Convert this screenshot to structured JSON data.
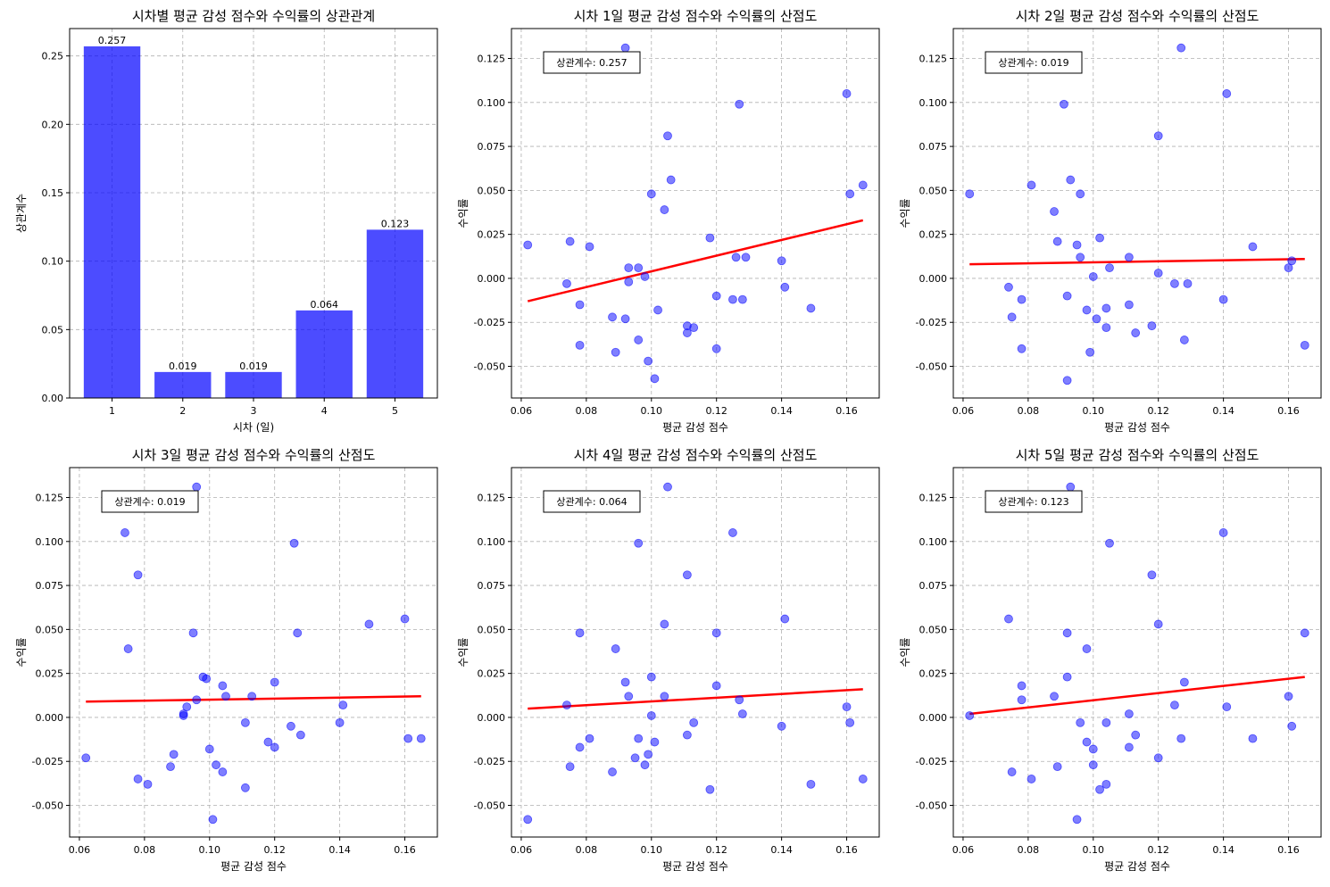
{
  "chart_data": [
    {
      "type": "bar",
      "title": "시차별 평균 감성 점수와 수익률의 상관관계",
      "xlabel": "시차 (일)",
      "ylabel": "상관계수",
      "categories": [
        "1",
        "2",
        "3",
        "4",
        "5"
      ],
      "values": [
        0.257,
        0.019,
        0.019,
        0.064,
        0.123
      ],
      "data_labels": [
        "0.257",
        "0.019",
        "0.019",
        "0.064",
        "0.123"
      ],
      "ylim": [
        0,
        0.27
      ],
      "yticks": [
        0.0,
        0.05,
        0.1,
        0.15,
        0.2,
        0.25
      ],
      "ytick_labels": [
        "0.00",
        "0.05",
        "0.10",
        "0.15",
        "0.20",
        "0.25"
      ],
      "grid": true,
      "bar_color": "#0000ff"
    },
    {
      "type": "scatter",
      "title": "시차 1일 평균 감성 점수와 수익률의 산점도",
      "xlabel": "평균 감성 점수",
      "ylabel": "수익률",
      "annotation": "상관계수: 0.257",
      "xlim": [
        0.057,
        0.17
      ],
      "ylim": [
        -0.068,
        0.142
      ],
      "xticks": [
        0.06,
        0.08,
        0.1,
        0.12,
        0.14,
        0.16
      ],
      "xtick_labels": [
        "0.06",
        "0.08",
        "0.10",
        "0.12",
        "0.14",
        "0.16"
      ],
      "yticks": [
        -0.05,
        -0.025,
        0.0,
        0.025,
        0.05,
        0.075,
        0.1,
        0.125
      ],
      "ytick_labels": [
        "-0.050",
        "-0.025",
        "0.000",
        "0.025",
        "0.050",
        "0.075",
        "0.100",
        "0.125"
      ],
      "grid": true,
      "point_color": "#0000ff",
      "line_color": "#ff0000",
      "trend": {
        "x": [
          0.062,
          0.165
        ],
        "y": [
          -0.013,
          0.033
        ]
      },
      "points": [
        [
          0.062,
          0.019
        ],
        [
          0.074,
          -0.003
        ],
        [
          0.075,
          0.021
        ],
        [
          0.078,
          -0.015
        ],
        [
          0.078,
          -0.038
        ],
        [
          0.081,
          0.018
        ],
        [
          0.088,
          -0.022
        ],
        [
          0.089,
          -0.042
        ],
        [
          0.092,
          0.131
        ],
        [
          0.092,
          -0.023
        ],
        [
          0.093,
          -0.002
        ],
        [
          0.093,
          0.006
        ],
        [
          0.096,
          0.006
        ],
        [
          0.096,
          -0.035
        ],
        [
          0.098,
          0.001
        ],
        [
          0.099,
          -0.047
        ],
        [
          0.1,
          0.048
        ],
        [
          0.101,
          -0.057
        ],
        [
          0.102,
          -0.018
        ],
        [
          0.104,
          0.039
        ],
        [
          0.105,
          0.081
        ],
        [
          0.106,
          0.056
        ],
        [
          0.111,
          -0.027
        ],
        [
          0.111,
          -0.031
        ],
        [
          0.113,
          -0.028
        ],
        [
          0.118,
          0.023
        ],
        [
          0.12,
          -0.01
        ],
        [
          0.12,
          -0.04
        ],
        [
          0.125,
          -0.012
        ],
        [
          0.126,
          0.012
        ],
        [
          0.127,
          0.099
        ],
        [
          0.128,
          -0.012
        ],
        [
          0.129,
          0.012
        ],
        [
          0.14,
          0.01
        ],
        [
          0.141,
          -0.005
        ],
        [
          0.149,
          -0.017
        ],
        [
          0.16,
          0.105
        ],
        [
          0.161,
          0.048
        ],
        [
          0.165,
          0.053
        ]
      ]
    },
    {
      "type": "scatter",
      "title": "시차 2일 평균 감성 점수와 수익률의 산점도",
      "xlabel": "평균 감성 점수",
      "ylabel": "수익률",
      "annotation": "상관계수: 0.019",
      "xlim": [
        0.057,
        0.17
      ],
      "ylim": [
        -0.068,
        0.142
      ],
      "xticks": [
        0.06,
        0.08,
        0.1,
        0.12,
        0.14,
        0.16
      ],
      "xtick_labels": [
        "0.06",
        "0.08",
        "0.10",
        "0.12",
        "0.14",
        "0.16"
      ],
      "yticks": [
        -0.05,
        -0.025,
        0.0,
        0.025,
        0.05,
        0.075,
        0.1,
        0.125
      ],
      "ytick_labels": [
        "-0.050",
        "-0.025",
        "0.000",
        "0.025",
        "0.050",
        "0.075",
        "0.100",
        "0.125"
      ],
      "grid": true,
      "point_color": "#0000ff",
      "line_color": "#ff0000",
      "trend": {
        "x": [
          0.062,
          0.165
        ],
        "y": [
          0.008,
          0.011
        ]
      },
      "points": [
        [
          0.062,
          0.048
        ],
        [
          0.074,
          -0.005
        ],
        [
          0.075,
          -0.022
        ],
        [
          0.078,
          -0.012
        ],
        [
          0.078,
          -0.04
        ],
        [
          0.081,
          0.053
        ],
        [
          0.088,
          0.038
        ],
        [
          0.089,
          0.021
        ],
        [
          0.091,
          0.099
        ],
        [
          0.092,
          -0.058
        ],
        [
          0.092,
          -0.01
        ],
        [
          0.093,
          0.056
        ],
        [
          0.095,
          0.019
        ],
        [
          0.096,
          0.012
        ],
        [
          0.096,
          0.048
        ],
        [
          0.098,
          -0.018
        ],
        [
          0.099,
          -0.042
        ],
        [
          0.1,
          0.001
        ],
        [
          0.101,
          -0.023
        ],
        [
          0.102,
          0.023
        ],
        [
          0.104,
          -0.028
        ],
        [
          0.104,
          -0.017
        ],
        [
          0.105,
          0.006
        ],
        [
          0.111,
          0.012
        ],
        [
          0.111,
          -0.015
        ],
        [
          0.113,
          -0.031
        ],
        [
          0.118,
          -0.027
        ],
        [
          0.12,
          0.081
        ],
        [
          0.12,
          0.003
        ],
        [
          0.125,
          -0.003
        ],
        [
          0.127,
          0.131
        ],
        [
          0.128,
          -0.035
        ],
        [
          0.129,
          -0.003
        ],
        [
          0.14,
          -0.012
        ],
        [
          0.141,
          0.105
        ],
        [
          0.149,
          0.018
        ],
        [
          0.16,
          0.006
        ],
        [
          0.161,
          0.01
        ],
        [
          0.165,
          -0.038
        ]
      ]
    },
    {
      "type": "scatter",
      "title": "시차 3일 평균 감성 점수와 수익률의 산점도",
      "xlabel": "평균 감성 점수",
      "ylabel": "수익률",
      "annotation": "상관계수: 0.019",
      "xlim": [
        0.057,
        0.17
      ],
      "ylim": [
        -0.068,
        0.142
      ],
      "xticks": [
        0.06,
        0.08,
        0.1,
        0.12,
        0.14,
        0.16
      ],
      "xtick_labels": [
        "0.06",
        "0.08",
        "0.10",
        "0.12",
        "0.14",
        "0.16"
      ],
      "yticks": [
        -0.05,
        -0.025,
        0.0,
        0.025,
        0.05,
        0.075,
        0.1,
        0.125
      ],
      "ytick_labels": [
        "-0.050",
        "-0.025",
        "0.000",
        "0.025",
        "0.050",
        "0.075",
        "0.100",
        "0.125"
      ],
      "grid": true,
      "point_color": "#0000ff",
      "line_color": "#ff0000",
      "trend": {
        "x": [
          0.062,
          0.165
        ],
        "y": [
          0.009,
          0.012
        ]
      },
      "points": [
        [
          0.062,
          -0.023
        ],
        [
          0.074,
          0.105
        ],
        [
          0.075,
          0.039
        ],
        [
          0.078,
          0.081
        ],
        [
          0.078,
          -0.035
        ],
        [
          0.081,
          -0.038
        ],
        [
          0.088,
          -0.028
        ],
        [
          0.089,
          -0.021
        ],
        [
          0.092,
          0.001
        ],
        [
          0.092,
          0.002
        ],
        [
          0.093,
          0.006
        ],
        [
          0.095,
          0.048
        ],
        [
          0.096,
          0.131
        ],
        [
          0.096,
          0.01
        ],
        [
          0.098,
          0.023
        ],
        [
          0.099,
          0.022
        ],
        [
          0.1,
          -0.018
        ],
        [
          0.101,
          -0.058
        ],
        [
          0.102,
          -0.027
        ],
        [
          0.104,
          -0.031
        ],
        [
          0.104,
          0.018
        ],
        [
          0.105,
          0.012
        ],
        [
          0.111,
          -0.003
        ],
        [
          0.111,
          -0.04
        ],
        [
          0.113,
          0.012
        ],
        [
          0.118,
          -0.014
        ],
        [
          0.12,
          0.02
        ],
        [
          0.12,
          -0.017
        ],
        [
          0.125,
          -0.005
        ],
        [
          0.126,
          0.099
        ],
        [
          0.127,
          0.048
        ],
        [
          0.128,
          -0.01
        ],
        [
          0.14,
          -0.003
        ],
        [
          0.141,
          0.007
        ],
        [
          0.149,
          0.053
        ],
        [
          0.16,
          0.056
        ],
        [
          0.161,
          -0.012
        ],
        [
          0.165,
          -0.012
        ]
      ]
    },
    {
      "type": "scatter",
      "title": "시차 4일 평균 감성 점수와 수익률의 산점도",
      "xlabel": "평균 감성 점수",
      "ylabel": "수익률",
      "annotation": "상관계수: 0.064",
      "xlim": [
        0.057,
        0.17
      ],
      "ylim": [
        -0.068,
        0.142
      ],
      "xticks": [
        0.06,
        0.08,
        0.1,
        0.12,
        0.14,
        0.16
      ],
      "xtick_labels": [
        "0.06",
        "0.08",
        "0.10",
        "0.12",
        "0.14",
        "0.16"
      ],
      "yticks": [
        -0.05,
        -0.025,
        0.0,
        0.025,
        0.05,
        0.075,
        0.1,
        0.125
      ],
      "ytick_labels": [
        "-0.050",
        "-0.025",
        "0.000",
        "0.025",
        "0.050",
        "0.075",
        "0.100",
        "0.125"
      ],
      "grid": true,
      "point_color": "#0000ff",
      "line_color": "#ff0000",
      "trend": {
        "x": [
          0.062,
          0.165
        ],
        "y": [
          0.005,
          0.016
        ]
      },
      "points": [
        [
          0.062,
          -0.058
        ],
        [
          0.074,
          0.007
        ],
        [
          0.075,
          -0.028
        ],
        [
          0.078,
          0.048
        ],
        [
          0.078,
          -0.017
        ],
        [
          0.081,
          -0.012
        ],
        [
          0.088,
          -0.031
        ],
        [
          0.089,
          0.039
        ],
        [
          0.092,
          0.02
        ],
        [
          0.093,
          0.012
        ],
        [
          0.095,
          -0.023
        ],
        [
          0.096,
          0.099
        ],
        [
          0.096,
          -0.012
        ],
        [
          0.098,
          -0.027
        ],
        [
          0.099,
          -0.021
        ],
        [
          0.1,
          0.023
        ],
        [
          0.1,
          0.001
        ],
        [
          0.101,
          -0.014
        ],
        [
          0.104,
          0.012
        ],
        [
          0.104,
          0.053
        ],
        [
          0.105,
          0.131
        ],
        [
          0.111,
          0.081
        ],
        [
          0.111,
          -0.01
        ],
        [
          0.113,
          -0.003
        ],
        [
          0.118,
          -0.041
        ],
        [
          0.12,
          0.048
        ],
        [
          0.12,
          0.018
        ],
        [
          0.125,
          0.105
        ],
        [
          0.127,
          0.01
        ],
        [
          0.128,
          0.002
        ],
        [
          0.14,
          -0.005
        ],
        [
          0.141,
          0.056
        ],
        [
          0.149,
          -0.038
        ],
        [
          0.16,
          0.006
        ],
        [
          0.161,
          -0.003
        ],
        [
          0.165,
          -0.035
        ]
      ]
    },
    {
      "type": "scatter",
      "title": "시차 5일 평균 감성 점수와 수익률의 산점도",
      "xlabel": "평균 감성 점수",
      "ylabel": "수익률",
      "annotation": "상관계수: 0.123",
      "xlim": [
        0.057,
        0.17
      ],
      "ylim": [
        -0.068,
        0.142
      ],
      "xticks": [
        0.06,
        0.08,
        0.1,
        0.12,
        0.14,
        0.16
      ],
      "xtick_labels": [
        "0.06",
        "0.08",
        "0.10",
        "0.12",
        "0.14",
        "0.16"
      ],
      "yticks": [
        -0.05,
        -0.025,
        0.0,
        0.025,
        0.05,
        0.075,
        0.1,
        0.125
      ],
      "ytick_labels": [
        "-0.050",
        "-0.025",
        "0.000",
        "0.025",
        "0.050",
        "0.075",
        "0.100",
        "0.125"
      ],
      "grid": true,
      "point_color": "#0000ff",
      "line_color": "#ff0000",
      "trend": {
        "x": [
          0.062,
          0.165
        ],
        "y": [
          0.002,
          0.023
        ]
      },
      "points": [
        [
          0.062,
          0.001
        ],
        [
          0.074,
          0.056
        ],
        [
          0.075,
          -0.031
        ],
        [
          0.078,
          0.018
        ],
        [
          0.078,
          0.01
        ],
        [
          0.081,
          -0.035
        ],
        [
          0.088,
          0.012
        ],
        [
          0.089,
          -0.028
        ],
        [
          0.092,
          0.023
        ],
        [
          0.092,
          0.048
        ],
        [
          0.093,
          0.131
        ],
        [
          0.095,
          -0.058
        ],
        [
          0.096,
          -0.003
        ],
        [
          0.098,
          -0.014
        ],
        [
          0.098,
          0.039
        ],
        [
          0.1,
          -0.018
        ],
        [
          0.1,
          -0.027
        ],
        [
          0.102,
          -0.041
        ],
        [
          0.104,
          -0.038
        ],
        [
          0.104,
          -0.003
        ],
        [
          0.105,
          0.099
        ],
        [
          0.111,
          0.002
        ],
        [
          0.111,
          -0.017
        ],
        [
          0.113,
          -0.01
        ],
        [
          0.118,
          0.081
        ],
        [
          0.12,
          0.053
        ],
        [
          0.12,
          -0.023
        ],
        [
          0.125,
          0.007
        ],
        [
          0.127,
          -0.012
        ],
        [
          0.128,
          0.02
        ],
        [
          0.14,
          0.105
        ],
        [
          0.141,
          0.006
        ],
        [
          0.149,
          -0.012
        ],
        [
          0.16,
          0.012
        ],
        [
          0.161,
          -0.005
        ],
        [
          0.165,
          0.048
        ]
      ]
    }
  ]
}
